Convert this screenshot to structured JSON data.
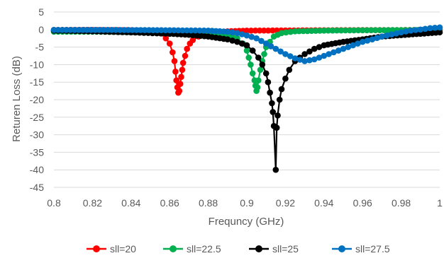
{
  "chart_data": {
    "type": "line",
    "title": "",
    "xlabel": "Frequncy (GHz)",
    "ylabel": "Returen Loss (dB)",
    "xlim": [
      0.8,
      1.0
    ],
    "ylim": [
      -45,
      5
    ],
    "x_ticks": [
      "0.8",
      "0.82",
      "0.84",
      "0.86",
      "0.88",
      "0.9",
      "0.92",
      "0.94",
      "0.96",
      "0.98",
      "1"
    ],
    "y_ticks": [
      "5",
      "0",
      "-5",
      "-10",
      "-15",
      "-20",
      "-25",
      "-30",
      "-35",
      "-40",
      "-45"
    ],
    "grid": "horizontal",
    "legend_position": "bottom",
    "series": [
      {
        "name": "sll=20",
        "color": "#ff0000",
        "marker": "circle",
        "points": [
          [
            0.8,
            -0.1
          ],
          [
            0.82,
            -0.1
          ],
          [
            0.84,
            -0.2
          ],
          [
            0.85,
            -0.4
          ],
          [
            0.855,
            -1.0
          ],
          [
            0.858,
            -2.5
          ],
          [
            0.86,
            -4.0
          ],
          [
            0.8615,
            -6.5
          ],
          [
            0.8625,
            -9.0
          ],
          [
            0.863,
            -12.0
          ],
          [
            0.8635,
            -14.5
          ],
          [
            0.864,
            -16.5
          ],
          [
            0.8645,
            -18.0
          ],
          [
            0.865,
            -17.5
          ],
          [
            0.8655,
            -15.5
          ],
          [
            0.866,
            -13.5
          ],
          [
            0.8665,
            -11.5
          ],
          [
            0.867,
            -9.5
          ],
          [
            0.868,
            -7.5
          ],
          [
            0.869,
            -5.5
          ],
          [
            0.8705,
            -4.0
          ],
          [
            0.872,
            -3.0
          ],
          [
            0.875,
            -2.0
          ],
          [
            0.88,
            -1.0
          ],
          [
            0.89,
            -0.5
          ],
          [
            0.9,
            -0.3
          ],
          [
            0.94,
            -0.2
          ],
          [
            1.0,
            -0.1
          ]
        ]
      },
      {
        "name": "sll=22.5",
        "color": "#00b050",
        "marker": "circle",
        "points": [
          [
            0.8,
            -0.6
          ],
          [
            0.82,
            -0.6
          ],
          [
            0.85,
            -0.8
          ],
          [
            0.88,
            -1.0
          ],
          [
            0.89,
            -1.5
          ],
          [
            0.895,
            -2.5
          ],
          [
            0.898,
            -4.0
          ],
          [
            0.9,
            -6.0
          ],
          [
            0.901,
            -8.0
          ],
          [
            0.902,
            -10.0
          ],
          [
            0.903,
            -12.5
          ],
          [
            0.904,
            -14.5
          ],
          [
            0.9045,
            -16.0
          ],
          [
            0.905,
            -17.5
          ],
          [
            0.9055,
            -16.5
          ],
          [
            0.906,
            -14.5
          ],
          [
            0.907,
            -11.5
          ],
          [
            0.908,
            -9.0
          ],
          [
            0.909,
            -7.0
          ],
          [
            0.91,
            -5.0
          ],
          [
            0.912,
            -3.5
          ],
          [
            0.914,
            -2.0
          ],
          [
            0.918,
            -1.0
          ],
          [
            0.925,
            -0.5
          ],
          [
            0.94,
            -0.3
          ],
          [
            0.96,
            -0.2
          ],
          [
            1.0,
            -0.1
          ]
        ]
      },
      {
        "name": "sll=25",
        "color": "#000000",
        "marker": "circle",
        "points": [
          [
            0.8,
            -0.3
          ],
          [
            0.82,
            -0.5
          ],
          [
            0.84,
            -0.8
          ],
          [
            0.86,
            -1.2
          ],
          [
            0.87,
            -1.5
          ],
          [
            0.88,
            -2.0
          ],
          [
            0.89,
            -2.8
          ],
          [
            0.895,
            -3.5
          ],
          [
            0.9,
            -4.5
          ],
          [
            0.903,
            -6.0
          ],
          [
            0.906,
            -8.0
          ],
          [
            0.908,
            -10.0
          ],
          [
            0.91,
            -12.5
          ],
          [
            0.911,
            -15.0
          ],
          [
            0.912,
            -18.0
          ],
          [
            0.913,
            -21.0
          ],
          [
            0.9135,
            -23.5
          ],
          [
            0.914,
            -27.5
          ],
          [
            0.915,
            -40.0
          ],
          [
            0.9155,
            -28.0
          ],
          [
            0.916,
            -24.5
          ],
          [
            0.917,
            -20.0
          ],
          [
            0.918,
            -17.0
          ],
          [
            0.92,
            -14.0
          ],
          [
            0.922,
            -11.5
          ],
          [
            0.925,
            -9.0
          ],
          [
            0.93,
            -7.0
          ],
          [
            0.935,
            -5.5
          ],
          [
            0.94,
            -4.5
          ],
          [
            0.95,
            -3.5
          ],
          [
            0.96,
            -2.8
          ],
          [
            0.97,
            -2.0
          ],
          [
            0.98,
            -1.6
          ],
          [
            0.99,
            -1.2
          ],
          [
            1.0,
            -0.8
          ]
        ]
      },
      {
        "name": "sll=27.5",
        "color": "#0070c0",
        "marker": "circle",
        "points": [
          [
            0.8,
            -0.1
          ],
          [
            0.83,
            -0.1
          ],
          [
            0.86,
            -0.2
          ],
          [
            0.88,
            -0.3
          ],
          [
            0.89,
            -0.6
          ],
          [
            0.895,
            -1.0
          ],
          [
            0.9,
            -1.7
          ],
          [
            0.905,
            -2.5
          ],
          [
            0.91,
            -4.0
          ],
          [
            0.915,
            -5.5
          ],
          [
            0.92,
            -7.0
          ],
          [
            0.925,
            -8.2
          ],
          [
            0.93,
            -9.0
          ],
          [
            0.935,
            -8.5
          ],
          [
            0.94,
            -7.5
          ],
          [
            0.945,
            -6.5
          ],
          [
            0.95,
            -5.5
          ],
          [
            0.955,
            -4.5
          ],
          [
            0.96,
            -3.5
          ],
          [
            0.965,
            -2.8
          ],
          [
            0.97,
            -2.0
          ],
          [
            0.975,
            -1.4
          ],
          [
            0.98,
            -0.8
          ],
          [
            0.985,
            -0.3
          ],
          [
            0.99,
            0.0
          ],
          [
            0.995,
            0.4
          ],
          [
            1.0,
            0.6
          ]
        ]
      }
    ]
  }
}
